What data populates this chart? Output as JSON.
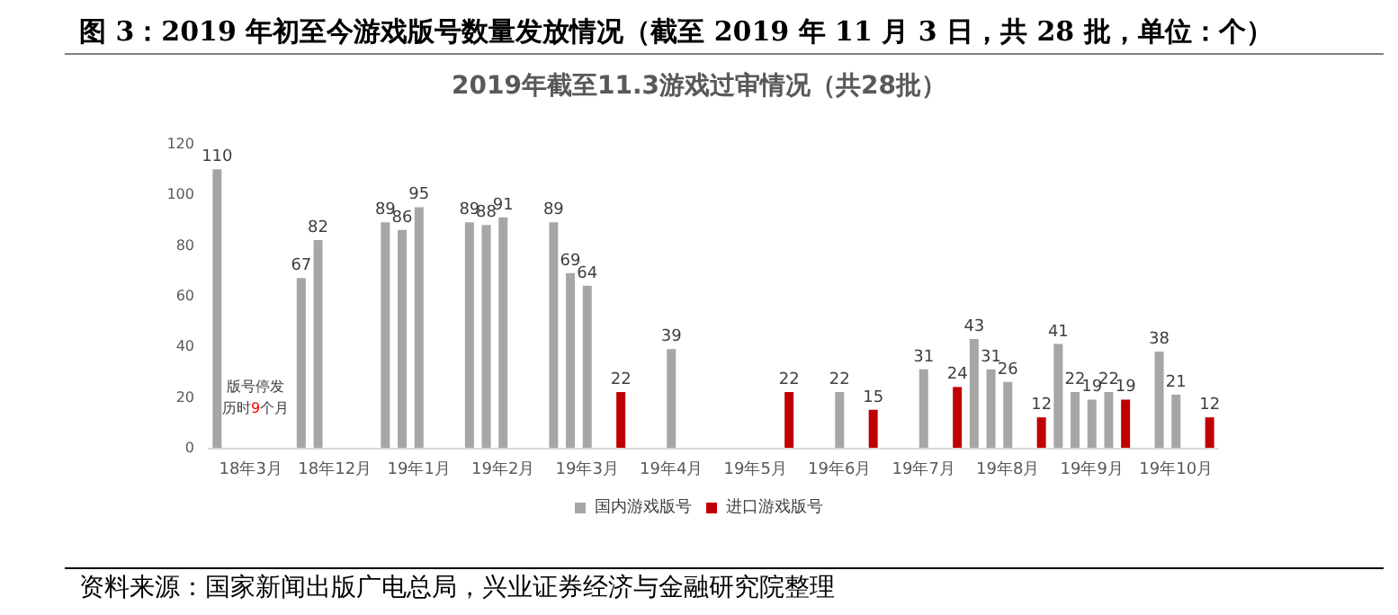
{
  "chart_data": {
    "type": "bar",
    "title": "图 3：2019 年初至今游戏版号数量发放情况（截至 2019 年 11 月 3 日，共 28 批，单位：个）",
    "subtitle": "2019年截至11.3游戏过审情况（共28批）",
    "categories": [
      null,
      null,
      "18年3月",
      null,
      null,
      null,
      null,
      "18年12月",
      null,
      null,
      null,
      null,
      "19年1月",
      null,
      null,
      null,
      null,
      "19年2月",
      null,
      null,
      null,
      null,
      "19年3月",
      null,
      null,
      null,
      null,
      "19年4月",
      null,
      null,
      null,
      null,
      "19年5月",
      null,
      null,
      null,
      null,
      "19年6月",
      null,
      null,
      null,
      null,
      "19年7月",
      null,
      null,
      null,
      null,
      "19年8月",
      null,
      null,
      null,
      null,
      "19年9月",
      null,
      null,
      null,
      null,
      "19年10月",
      null,
      null
    ],
    "series": [
      {
        "name": "国内游戏版号",
        "color": "#a6a6a6",
        "values": [
          110,
          null,
          null,
          null,
          null,
          67,
          82,
          null,
          null,
          null,
          89,
          86,
          95,
          null,
          null,
          89,
          88,
          91,
          null,
          null,
          89,
          69,
          64,
          null,
          null,
          null,
          null,
          39,
          null,
          null,
          null,
          null,
          null,
          null,
          null,
          null,
          null,
          22,
          null,
          null,
          null,
          null,
          31,
          null,
          null,
          43,
          31,
          26,
          null,
          null,
          41,
          22,
          19,
          22,
          null,
          null,
          38,
          21,
          null,
          null
        ]
      },
      {
        "name": "进口游戏版号",
        "color": "#c00000",
        "values": [
          null,
          null,
          null,
          null,
          null,
          null,
          null,
          null,
          null,
          null,
          null,
          null,
          null,
          null,
          null,
          null,
          null,
          null,
          null,
          null,
          null,
          null,
          null,
          null,
          22,
          null,
          null,
          null,
          null,
          null,
          null,
          null,
          null,
          null,
          22,
          null,
          null,
          null,
          null,
          15,
          null,
          null,
          null,
          null,
          24,
          null,
          null,
          null,
          null,
          12,
          null,
          null,
          null,
          null,
          19,
          null,
          null,
          null,
          null,
          12
        ]
      }
    ],
    "ylim": [
      0,
      120
    ],
    "yticks": [
      0,
      20,
      40,
      60,
      80,
      100,
      120
    ],
    "grid": false,
    "legend": "bottom",
    "data_labels": true,
    "annotations": [
      "版号停发",
      "历时9个月",
      "资料来源：国家新闻出版广电总局，兴业证券经济与金融研究院整理"
    ]
  }
}
